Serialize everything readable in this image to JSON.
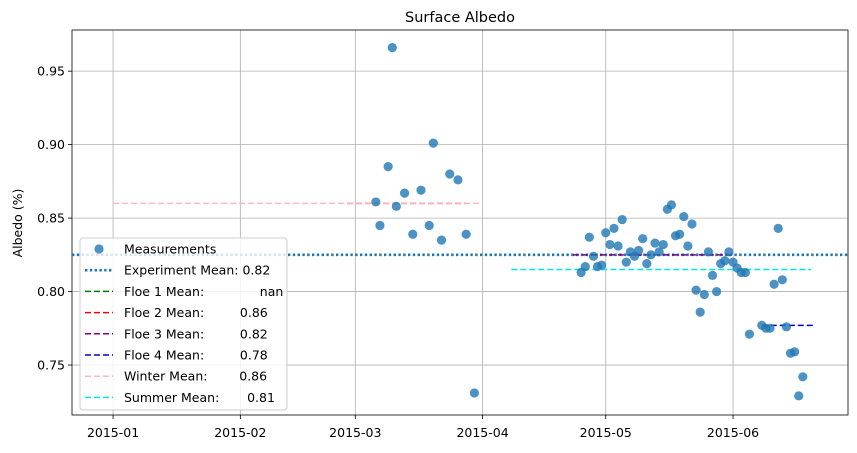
{
  "chart_data": {
    "type": "scatter",
    "title": "Surface Albedo",
    "xlabel": "",
    "ylabel": "Albedo (%)",
    "x_ticks": [
      "2015-01",
      "2015-02",
      "2015-03",
      "2015-04",
      "2015-05",
      "2015-06"
    ],
    "xlim": [
      "2014-12-22",
      "2015-06-29"
    ],
    "ylim": [
      0.716,
      0.978
    ],
    "y_ticks": [
      0.75,
      0.8,
      0.85,
      0.9,
      0.95
    ],
    "y_tick_labels": [
      "0.75",
      "0.80",
      "0.85",
      "0.90",
      "0.95"
    ],
    "grid": true,
    "legend_position": "lower-left",
    "point_color": "#1f77b4",
    "series": [
      {
        "name": "Measurements",
        "kind": "points",
        "points": [
          {
            "x": "2015-03-06",
            "y": 0.861
          },
          {
            "x": "2015-03-07",
            "y": 0.845
          },
          {
            "x": "2015-03-09",
            "y": 0.885
          },
          {
            "x": "2015-03-10",
            "y": 0.966
          },
          {
            "x": "2015-03-11",
            "y": 0.858
          },
          {
            "x": "2015-03-13",
            "y": 0.867
          },
          {
            "x": "2015-03-15",
            "y": 0.839
          },
          {
            "x": "2015-03-17",
            "y": 0.869
          },
          {
            "x": "2015-03-19",
            "y": 0.845
          },
          {
            "x": "2015-03-20",
            "y": 0.901
          },
          {
            "x": "2015-03-22",
            "y": 0.835
          },
          {
            "x": "2015-03-24",
            "y": 0.88
          },
          {
            "x": "2015-03-26",
            "y": 0.876
          },
          {
            "x": "2015-03-28",
            "y": 0.839
          },
          {
            "x": "2015-03-30",
            "y": 0.731
          },
          {
            "x": "2015-04-25",
            "y": 0.813
          },
          {
            "x": "2015-04-26",
            "y": 0.817
          },
          {
            "x": "2015-04-27",
            "y": 0.837
          },
          {
            "x": "2015-04-28",
            "y": 0.824
          },
          {
            "x": "2015-04-29",
            "y": 0.817
          },
          {
            "x": "2015-04-30",
            "y": 0.818
          },
          {
            "x": "2015-05-01",
            "y": 0.84
          },
          {
            "x": "2015-05-02",
            "y": 0.832
          },
          {
            "x": "2015-05-03",
            "y": 0.843
          },
          {
            "x": "2015-05-04",
            "y": 0.831
          },
          {
            "x": "2015-05-05",
            "y": 0.849
          },
          {
            "x": "2015-05-06",
            "y": 0.82
          },
          {
            "x": "2015-05-07",
            "y": 0.827
          },
          {
            "x": "2015-05-08",
            "y": 0.824
          },
          {
            "x": "2015-05-09",
            "y": 0.828
          },
          {
            "x": "2015-05-10",
            "y": 0.836
          },
          {
            "x": "2015-05-11",
            "y": 0.819
          },
          {
            "x": "2015-05-12",
            "y": 0.825
          },
          {
            "x": "2015-05-13",
            "y": 0.833
          },
          {
            "x": "2015-05-14",
            "y": 0.827
          },
          {
            "x": "2015-05-15",
            "y": 0.832
          },
          {
            "x": "2015-05-16",
            "y": 0.856
          },
          {
            "x": "2015-05-17",
            "y": 0.859
          },
          {
            "x": "2015-05-18",
            "y": 0.838
          },
          {
            "x": "2015-05-19",
            "y": 0.839
          },
          {
            "x": "2015-05-20",
            "y": 0.851
          },
          {
            "x": "2015-05-21",
            "y": 0.831
          },
          {
            "x": "2015-05-22",
            "y": 0.846
          },
          {
            "x": "2015-05-23",
            "y": 0.801
          },
          {
            "x": "2015-05-24",
            "y": 0.786
          },
          {
            "x": "2015-05-25",
            "y": 0.798
          },
          {
            "x": "2015-05-26",
            "y": 0.827
          },
          {
            "x": "2015-05-27",
            "y": 0.811
          },
          {
            "x": "2015-05-28",
            "y": 0.8
          },
          {
            "x": "2015-05-29",
            "y": 0.819
          },
          {
            "x": "2015-05-30",
            "y": 0.821
          },
          {
            "x": "2015-05-31",
            "y": 0.827
          },
          {
            "x": "2015-06-01",
            "y": 0.82
          },
          {
            "x": "2015-06-02",
            "y": 0.816
          },
          {
            "x": "2015-06-03",
            "y": 0.813
          },
          {
            "x": "2015-06-04",
            "y": 0.813
          },
          {
            "x": "2015-06-05",
            "y": 0.771
          },
          {
            "x": "2015-06-08",
            "y": 0.777
          },
          {
            "x": "2015-06-09",
            "y": 0.775
          },
          {
            "x": "2015-06-10",
            "y": 0.775
          },
          {
            "x": "2015-06-11",
            "y": 0.805
          },
          {
            "x": "2015-06-12",
            "y": 0.843
          },
          {
            "x": "2015-06-13",
            "y": 0.808
          },
          {
            "x": "2015-06-14",
            "y": 0.776
          },
          {
            "x": "2015-06-15",
            "y": 0.758
          },
          {
            "x": "2015-06-16",
            "y": 0.759
          },
          {
            "x": "2015-06-17",
            "y": 0.729
          },
          {
            "x": "2015-06-18",
            "y": 0.742
          }
        ]
      },
      {
        "name": "Experiment Mean: 0.82",
        "kind": "hline",
        "y": 0.825,
        "color": "#1f77b4",
        "style": "dotted",
        "x_start": "2014-12-22",
        "x_end": "2015-06-29"
      },
      {
        "name": "Floe 1 Mean:              nan",
        "kind": "hline",
        "y": null,
        "color": "#008000",
        "style": "dashed"
      },
      {
        "name": "Floe 2 Mean:         0.86",
        "kind": "hline",
        "y": 0.86,
        "color": "#ff0000",
        "style": "dashed",
        "x_start": "2015-02-27",
        "x_end": "2015-03-28"
      },
      {
        "name": "Floe 3 Mean:         0.82",
        "kind": "hline",
        "y": 0.825,
        "color": "#800080",
        "style": "dashed",
        "x_start": "2015-04-23",
        "x_end": "2015-06-01"
      },
      {
        "name": "Floe 4 Mean:         0.78",
        "kind": "hline",
        "y": 0.777,
        "color": "#0000cd",
        "style": "dashed",
        "x_start": "2015-06-08",
        "x_end": "2015-06-21"
      },
      {
        "name": "Winter Mean:        0.86",
        "kind": "hline",
        "y": 0.86,
        "color": "#ffb6c1",
        "style": "dashed",
        "x_start": "2015-01-01",
        "x_end": "2015-04-01"
      },
      {
        "name": "Summer Mean:       0.81",
        "kind": "hline",
        "y": 0.815,
        "color": "#00e5ee",
        "style": "dashed",
        "x_start": "2015-04-08",
        "x_end": "2015-06-20"
      }
    ]
  }
}
